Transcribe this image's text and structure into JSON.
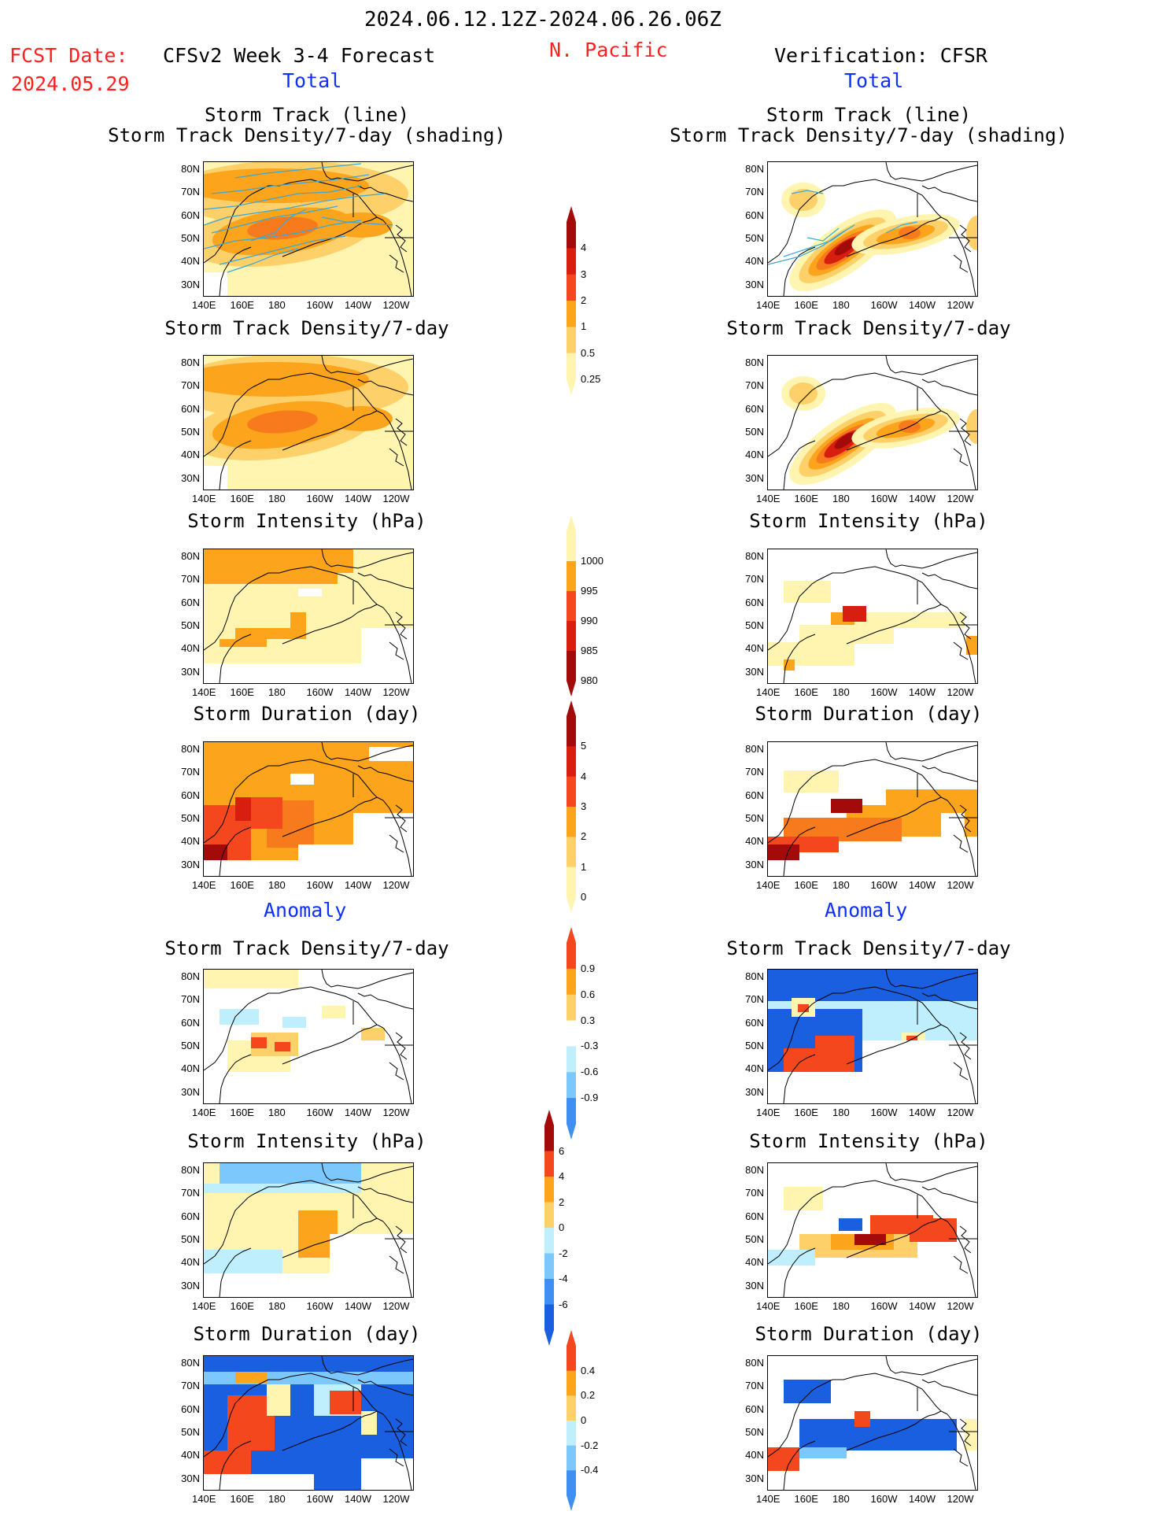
{
  "header": {
    "date_range": "2024.06.12.12Z-2024.06.26.06Z",
    "fcst_label": "FCST Date:",
    "fcst_date": "2024.05.29",
    "model_title": "CFSv2 Week 3-4 Forecast",
    "region": "N. Pacific",
    "verification": "Verification: CFSR",
    "left_total": "Total",
    "right_total": "Total",
    "left_anomaly": "Anomaly",
    "right_anomaly": "Anomaly"
  },
  "axes": {
    "lat_labels": [
      "80N",
      "70N",
      "60N",
      "50N",
      "40N",
      "30N"
    ],
    "lon_labels": [
      "140E",
      "160E",
      "180",
      "160W",
      "140W",
      "120W"
    ]
  },
  "panel_titles": {
    "track_line": "Storm Track (line)",
    "track_density_shading": "Storm Track Density/7-day (shading)",
    "track_density": "Storm Track Density/7-day",
    "intensity": "Storm Intensity (hPa)",
    "duration": "Storm Duration (day)"
  },
  "colors": {
    "pale_yellow": "#fff5b0",
    "light_orange": "#fdd06a",
    "orange": "#fba41c",
    "dark_orange": "#f77a1c",
    "red_orange": "#f5471d",
    "red": "#d81e0e",
    "dark_red": "#a30a0a",
    "light_blue": "#bfeffd",
    "mid_blue": "#7cc7fb",
    "blue": "#3f8ef2",
    "dark_blue": "#1a5fe0",
    "track_line": "#3aa8d8"
  },
  "colorbars": [
    {
      "id": "density_total",
      "ticks": [
        "4",
        "3",
        "2",
        "1",
        "0.5",
        "0.25"
      ]
    },
    {
      "id": "intensity_total",
      "ticks": [
        "1000",
        "995",
        "990",
        "985",
        "980"
      ]
    },
    {
      "id": "duration_total",
      "ticks": [
        "5",
        "4",
        "3",
        "2",
        "1",
        "0"
      ]
    },
    {
      "id": "density_anom",
      "ticks": [
        "0.9",
        "0.6",
        "0.3",
        "-0.3",
        "-0.6",
        "-0.9"
      ]
    },
    {
      "id": "intensity_anom",
      "ticks": [
        "6",
        "4",
        "2",
        "0",
        "-2",
        "-4",
        "-6"
      ]
    },
    {
      "id": "duration_anom",
      "ticks": [
        "0.4",
        "0.2",
        "0",
        "-0.2",
        "-0.4"
      ]
    }
  ],
  "chart_data": [
    {
      "type": "heatmap",
      "panel": "forecast-total-track",
      "title": "Storm Track (line) / Storm Track Density/7-day (shading)",
      "xlim": [
        "140E",
        "115W"
      ],
      "ylim": [
        25,
        85
      ],
      "peak_density": 2,
      "peak_location": "50N 175E"
    },
    {
      "type": "heatmap",
      "panel": "verification-total-track",
      "title": "Storm Track (line) / Storm Track Density/7-day (shading)",
      "xlim": [
        "140E",
        "115W"
      ],
      "ylim": [
        25,
        85
      ],
      "peak_density": 4,
      "peak_location": "43N 170E"
    },
    {
      "type": "heatmap",
      "panel": "forecast-total-density",
      "title": "Storm Track Density/7-day",
      "xlim": [
        "140E",
        "115W"
      ],
      "ylim": [
        25,
        85
      ]
    },
    {
      "type": "heatmap",
      "panel": "verification-total-density",
      "title": "Storm Track Density/7-day",
      "xlim": [
        "140E",
        "115W"
      ],
      "ylim": [
        25,
        85
      ]
    },
    {
      "type": "heatmap",
      "panel": "forecast-total-intensity",
      "title": "Storm Intensity (hPa)",
      "xlim": [
        "140E",
        "115W"
      ],
      "ylim": [
        25,
        85
      ]
    },
    {
      "type": "heatmap",
      "panel": "verification-total-intensity",
      "title": "Storm Intensity (hPa)",
      "xlim": [
        "140E",
        "115W"
      ],
      "ylim": [
        25,
        85
      ]
    },
    {
      "type": "heatmap",
      "panel": "forecast-total-duration",
      "title": "Storm Duration (day)",
      "xlim": [
        "140E",
        "115W"
      ],
      "ylim": [
        25,
        85
      ]
    },
    {
      "type": "heatmap",
      "panel": "verification-total-duration",
      "title": "Storm Duration (day)",
      "xlim": [
        "140E",
        "115W"
      ],
      "ylim": [
        25,
        85
      ]
    },
    {
      "type": "heatmap",
      "panel": "forecast-anomaly-density",
      "title": "Storm Track Density/7-day",
      "xlim": [
        "140E",
        "115W"
      ],
      "ylim": [
        25,
        85
      ]
    },
    {
      "type": "heatmap",
      "panel": "verification-anomaly-density",
      "title": "Storm Track Density/7-day",
      "xlim": [
        "140E",
        "115W"
      ],
      "ylim": [
        25,
        85
      ]
    },
    {
      "type": "heatmap",
      "panel": "forecast-anomaly-intensity",
      "title": "Storm Intensity (hPa)",
      "xlim": [
        "140E",
        "115W"
      ],
      "ylim": [
        25,
        85
      ]
    },
    {
      "type": "heatmap",
      "panel": "verification-anomaly-intensity",
      "title": "Storm Intensity (hPa)",
      "xlim": [
        "140E",
        "115W"
      ],
      "ylim": [
        25,
        85
      ]
    },
    {
      "type": "heatmap",
      "panel": "forecast-anomaly-duration",
      "title": "Storm Duration (day)",
      "xlim": [
        "140E",
        "115W"
      ],
      "ylim": [
        25,
        85
      ]
    },
    {
      "type": "heatmap",
      "panel": "verification-anomaly-duration",
      "title": "Storm Duration (day)",
      "xlim": [
        "140E",
        "115W"
      ],
      "ylim": [
        25,
        85
      ]
    }
  ]
}
